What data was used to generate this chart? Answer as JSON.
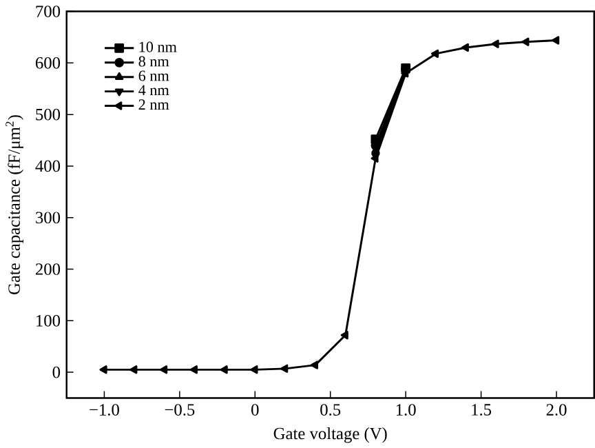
{
  "chart_data": {
    "type": "line",
    "xlabel": "Gate voltage (V)",
    "ylabel": "Gate capacitance (fF/μm$^{2}$)",
    "x": [
      -1.0,
      -0.8,
      -0.6,
      -0.4,
      -0.2,
      0.0,
      0.2,
      0.4,
      0.6,
      0.8,
      1.0,
      1.2,
      1.4,
      1.6,
      1.8,
      2.0
    ],
    "xlim": [
      -1.25,
      2.25
    ],
    "ylim": [
      -50,
      700
    ],
    "xticks": [
      {
        "value": -1.0,
        "label": "−1.0"
      },
      {
        "value": -0.5,
        "label": "−0.5"
      },
      0,
      {
        "value": 0.5,
        "label": "0.5"
      },
      {
        "value": 1.0,
        "label": "1.0"
      },
      {
        "value": 1.5,
        "label": "1.5"
      },
      {
        "value": 2.0,
        "label": "2.0"
      }
    ],
    "yticks": [
      0,
      100,
      200,
      300,
      400,
      500,
      600,
      700
    ],
    "grid": false,
    "legend": "top left",
    "line_style": "solid",
    "series": [
      {
        "name": "10 nm",
        "color": "#000000",
        "marker": "square",
        "values": [
          null,
          null,
          null,
          null,
          null,
          null,
          null,
          null,
          null,
          452,
          590,
          null,
          null,
          null,
          null,
          null
        ]
      },
      {
        "name": "8 nm",
        "color": "#000000",
        "marker": "circle",
        "values": [
          null,
          null,
          null,
          null,
          null,
          null,
          null,
          null,
          null,
          440,
          588,
          null,
          null,
          null,
          null,
          null
        ]
      },
      {
        "name": "6 nm",
        "color": "#000000",
        "marker": "triangle",
        "values": [
          null,
          null,
          null,
          null,
          null,
          null,
          null,
          null,
          null,
          430,
          585,
          null,
          null,
          null,
          null,
          null
        ]
      },
      {
        "name": "4 nm",
        "color": "#000000",
        "marker": "triangle-down",
        "values": [
          null,
          null,
          null,
          null,
          null,
          null,
          null,
          null,
          null,
          420,
          582,
          null,
          null,
          null,
          null,
          null
        ]
      },
      {
        "name": "2 nm",
        "color": "#000000",
        "marker": "triangle-left",
        "values": [
          5,
          5,
          5,
          5,
          5,
          5,
          7,
          14,
          72,
          415,
          580,
          618,
          630,
          637,
          641,
          644
        ]
      }
    ]
  }
}
